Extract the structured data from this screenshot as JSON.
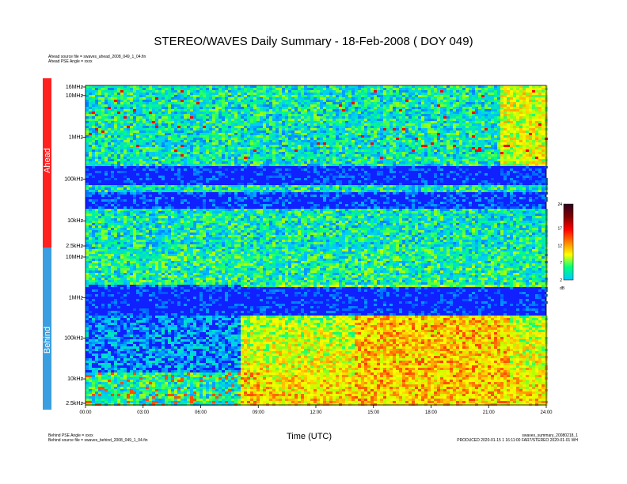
{
  "chart_data": {
    "type": "heatmap",
    "title": "STEREO/WAVES Daily Summary - 18-Feb-2008 ( DOY 049)",
    "xlabel": "Time (UTC)",
    "x_ticks": [
      "00:00",
      "03:00",
      "06:00",
      "09:00",
      "12:00",
      "15:00",
      "18:00",
      "21:00",
      "24:00"
    ],
    "xlim": [
      0,
      24
    ],
    "panels": [
      {
        "name": "Ahead",
        "y_ticks": [
          "2.5kHz",
          "10kHz",
          "100kHz",
          "1MHz",
          "10MHz",
          "16MHz"
        ],
        "log_freq_hz": [
          2500,
          10000,
          100000,
          1000000,
          10000000,
          16000000
        ]
      },
      {
        "name": "Behind",
        "y_ticks": [
          "10MHz",
          "1MHz",
          "100kHz",
          "10kHz",
          "2.5kHz"
        ],
        "log_freq_hz": [
          10000000,
          1000000,
          100000,
          10000,
          2500
        ]
      }
    ],
    "colorbar": {
      "ticks": [
        24,
        17,
        12,
        7,
        2
      ],
      "range": [
        2,
        24
      ],
      "unit": "dB",
      "colors": [
        "#00c8ff",
        "#00ff80",
        "#ffff00",
        "#ff8000",
        "#ff0000",
        "#800000",
        "#300020"
      ]
    },
    "colors": {
      "ahead": "#ff2020",
      "behind": "#3a9ee0"
    }
  },
  "header": {
    "ahead_source": "Ahead source file = swaves_ahead_2008_049_1_04.fin",
    "ahead_angle": "Ahead PSE Angle = xxxx"
  },
  "footer": {
    "behind_angle": "Behind PSE Angle = xxxx",
    "behind_source": "Behind source file = swaves_behind_2008_049_1_04.fin",
    "summary_file": "swaves_summary_20080218_1",
    "produced": "PRODUCED 2020-01-15 1 16:11:00 FAR7/STEREO 2020-01-01 WH"
  }
}
